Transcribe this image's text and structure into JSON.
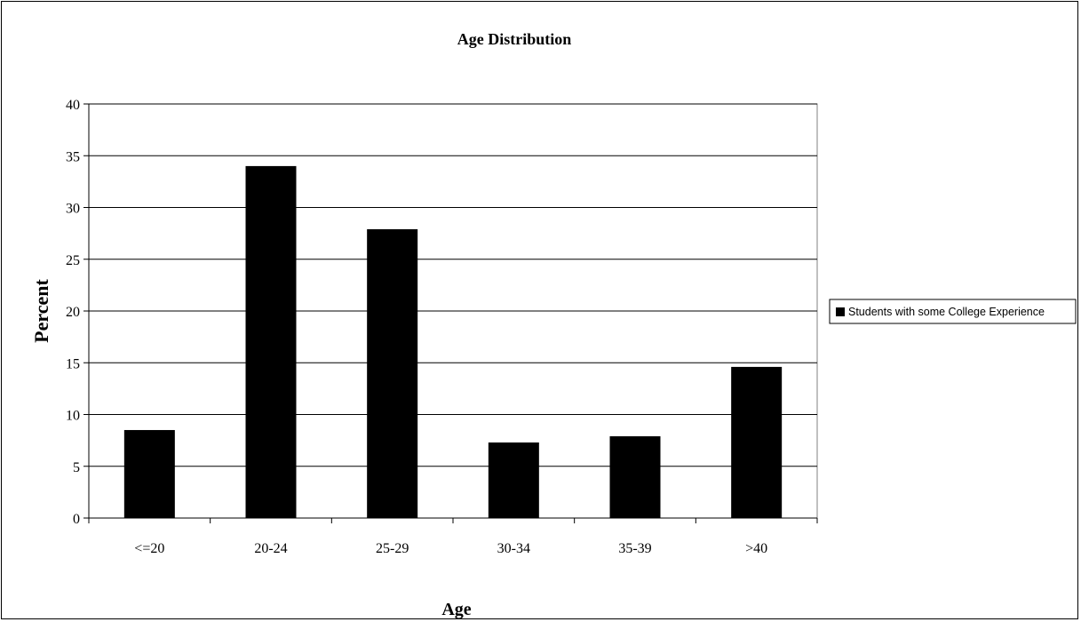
{
  "chart_data": {
    "type": "bar",
    "title": "Age Distribution",
    "xlabel": "Age",
    "ylabel": "Percent",
    "categories": [
      "<=20",
      "20-24",
      "25-29",
      "30-34",
      "35-39",
      ">40"
    ],
    "series": [
      {
        "name": "Students with some College Experience",
        "values": [
          8.5,
          34.0,
          27.9,
          7.3,
          7.9,
          14.6
        ],
        "color": "#000000"
      }
    ],
    "ylim": [
      0,
      40
    ],
    "yticks": [
      "0",
      "5",
      "10",
      "15",
      "20",
      "25",
      "30",
      "35",
      "40"
    ],
    "grid": true,
    "legend_position": "right"
  }
}
